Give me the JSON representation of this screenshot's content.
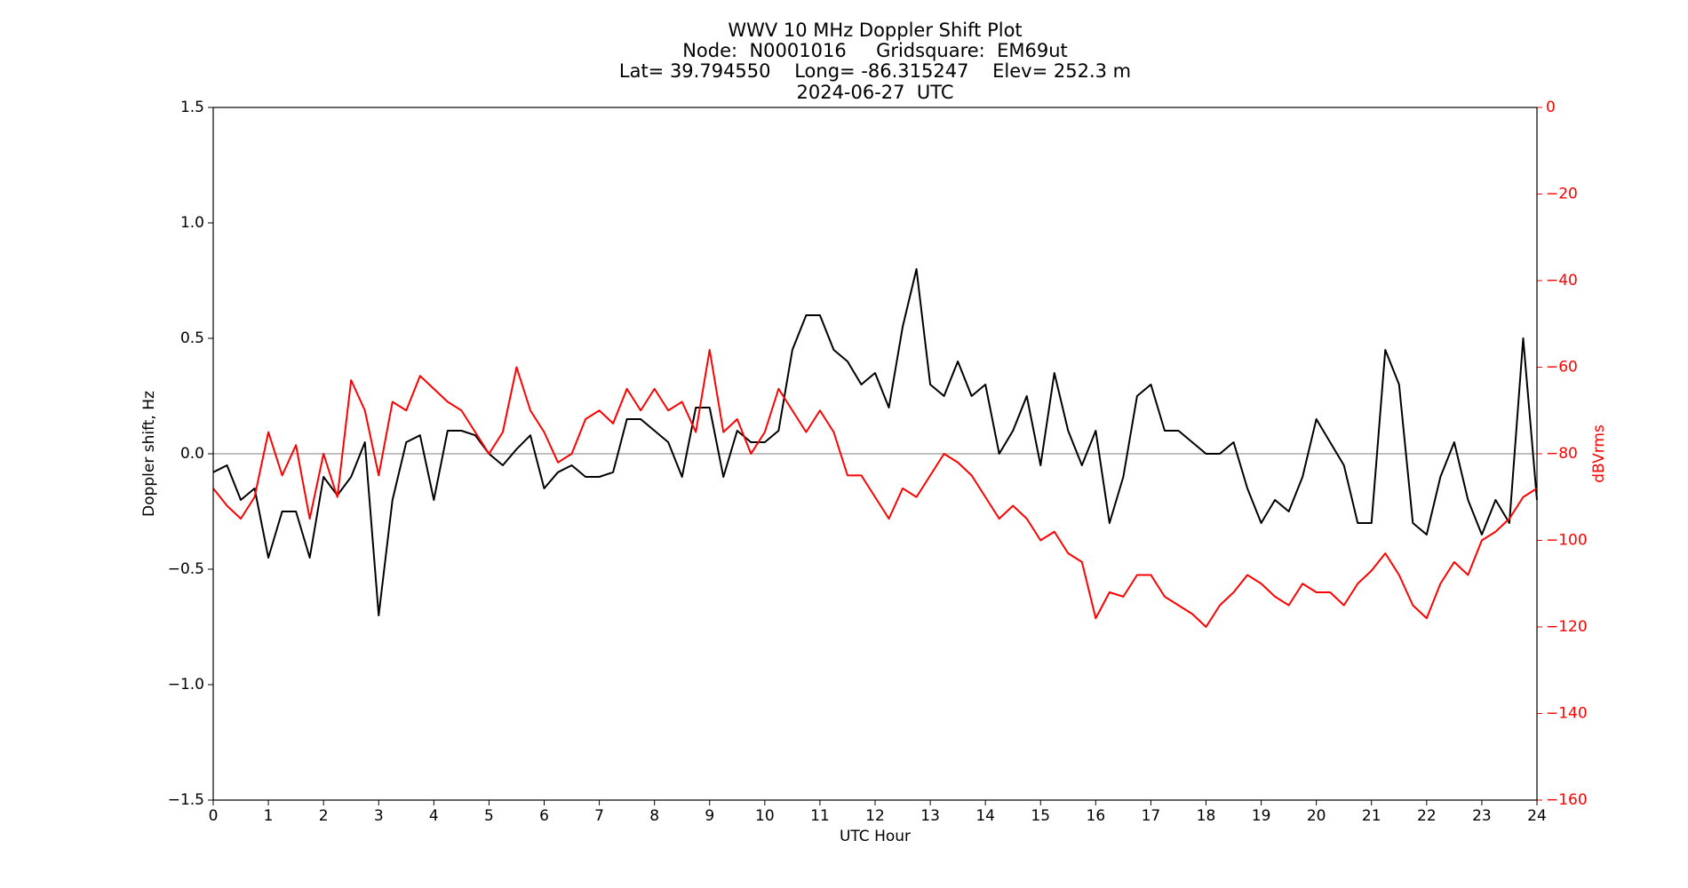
{
  "chart_data": {
    "type": "line",
    "title": [
      "WWV 10 MHz Doppler Shift Plot",
      "Node:  N0001016     Gridsquare:  EM69ut",
      "Lat= 39.794550    Long= -86.315247    Elev= 252.3 m",
      "2024-06-27  UTC"
    ],
    "x_label": "UTC Hour",
    "y_label": "Doppler shift, Hz",
    "y2_label": "dBVrms",
    "x": [
      0,
      0.25,
      0.5,
      0.75,
      1,
      1.25,
      1.5,
      1.75,
      2,
      2.25,
      2.5,
      2.75,
      3,
      3.25,
      3.5,
      3.75,
      4,
      4.25,
      4.5,
      4.75,
      5,
      5.25,
      5.5,
      5.75,
      6,
      6.25,
      6.5,
      6.75,
      7,
      7.25,
      7.5,
      7.75,
      8,
      8.25,
      8.5,
      8.75,
      9,
      9.25,
      9.5,
      9.75,
      10,
      10.25,
      10.5,
      10.75,
      11,
      11.25,
      11.5,
      11.75,
      12,
      12.25,
      12.5,
      12.75,
      13,
      13.25,
      13.5,
      13.75,
      14,
      14.25,
      14.5,
      14.75,
      15,
      15.25,
      15.5,
      15.75,
      16,
      16.25,
      16.5,
      16.75,
      17,
      17.25,
      17.5,
      17.75,
      18,
      18.25,
      18.5,
      18.75,
      19,
      19.25,
      19.5,
      19.75,
      20,
      20.25,
      20.5,
      20.75,
      21,
      21.25,
      21.5,
      21.75,
      22,
      22.25,
      22.5,
      22.75,
      23,
      23.25,
      23.5,
      23.75,
      24
    ],
    "series": [
      {
        "color": "#000000",
        "axis": "y",
        "values": [
          -0.08,
          -0.05,
          -0.2,
          -0.15,
          -0.45,
          -0.25,
          -0.25,
          -0.45,
          -0.1,
          -0.18,
          -0.1,
          0.05,
          -0.7,
          -0.2,
          0.05,
          0.08,
          -0.2,
          0.1,
          0.1,
          0.08,
          0,
          -0.05,
          0.02,
          0.08,
          -0.15,
          -0.08,
          -0.05,
          -0.1,
          -0.1,
          -0.08,
          0.15,
          0.15,
          0.1,
          0.05,
          -0.1,
          0.2,
          0.2,
          -0.1,
          0.1,
          0.05,
          0.05,
          0.1,
          0.45,
          0.6,
          0.6,
          0.45,
          0.4,
          0.3,
          0.35,
          0.2,
          0.55,
          0.8,
          0.3,
          0.25,
          0.4,
          0.25,
          0.3,
          0,
          0.1,
          0.25,
          -0.05,
          0.35,
          0.1,
          -0.05,
          0.1,
          -0.3,
          -0.1,
          0.25,
          0.3,
          0.1,
          0.1,
          0.05,
          0,
          0,
          0.05,
          -0.15,
          -0.3,
          -0.2,
          -0.25,
          -0.1,
          0.15,
          0.05,
          -0.05,
          -0.3,
          -0.3,
          0.45,
          0.3,
          -0.3,
          -0.35,
          -0.1,
          0.05,
          -0.2,
          -0.35,
          -0.2,
          -0.3,
          0.5,
          -0.2
        ]
      },
      {
        "color": "#ff0000",
        "axis": "y2",
        "values": [
          -88,
          -92,
          -95,
          -90,
          -75,
          -85,
          -78,
          -95,
          -80,
          -90,
          -63,
          -70,
          -85,
          -68,
          -70,
          -62,
          -65,
          -68,
          -70,
          -75,
          -80,
          -75,
          -60,
          -70,
          -75,
          -82,
          -80,
          -72,
          -70,
          -73,
          -65,
          -70,
          -65,
          -70,
          -68,
          -75,
          -56,
          -75,
          -72,
          -80,
          -75,
          -65,
          -70,
          -75,
          -70,
          -75,
          -85,
          -85,
          -90,
          -95,
          -88,
          -90,
          -85,
          -80,
          -82,
          -85,
          -90,
          -95,
          -92,
          -95,
          -100,
          -98,
          -103,
          -105,
          -118,
          -112,
          -113,
          -108,
          -108,
          -113,
          -115,
          -117,
          -120,
          -115,
          -112,
          -108,
          -110,
          -113,
          -115,
          -110,
          -112,
          -112,
          -115,
          -110,
          -107,
          -103,
          -108,
          -115,
          -118,
          -110,
          -105,
          -108,
          -100,
          -98,
          -95,
          -90,
          -88
        ]
      }
    ],
    "xlim": [
      0,
      24
    ],
    "xticks": [
      0,
      1,
      2,
      3,
      4,
      5,
      6,
      7,
      8,
      9,
      10,
      11,
      12,
      13,
      14,
      15,
      16,
      17,
      18,
      19,
      20,
      21,
      22,
      23,
      24
    ],
    "ylim": [
      -1.5,
      1.5
    ],
    "yticks": [
      {
        "value": -1.5,
        "label": "−1.5"
      },
      {
        "value": -1,
        "label": "−1.0"
      },
      {
        "value": -0.5,
        "label": "−0.5"
      },
      {
        "value": 0,
        "label": "0.0"
      },
      {
        "value": 0.5,
        "label": "0.5"
      },
      {
        "value": 1,
        "label": "1.0"
      },
      {
        "value": 1.5,
        "label": "1.5"
      }
    ],
    "y2lim": [
      -160,
      0
    ],
    "y2ticks": [
      {
        "value": -160,
        "label": "−160"
      },
      {
        "value": -140,
        "label": "−140"
      },
      {
        "value": -120,
        "label": "−120"
      },
      {
        "value": -100,
        "label": "−100"
      },
      {
        "value": -80,
        "label": "−80"
      },
      {
        "value": -60,
        "label": "−60"
      },
      {
        "value": -40,
        "label": "−40"
      },
      {
        "value": -20,
        "label": "−20"
      },
      0
    ],
    "y2_color": "#ff0000",
    "reference_line": 0,
    "reference_color": "#999999"
  }
}
